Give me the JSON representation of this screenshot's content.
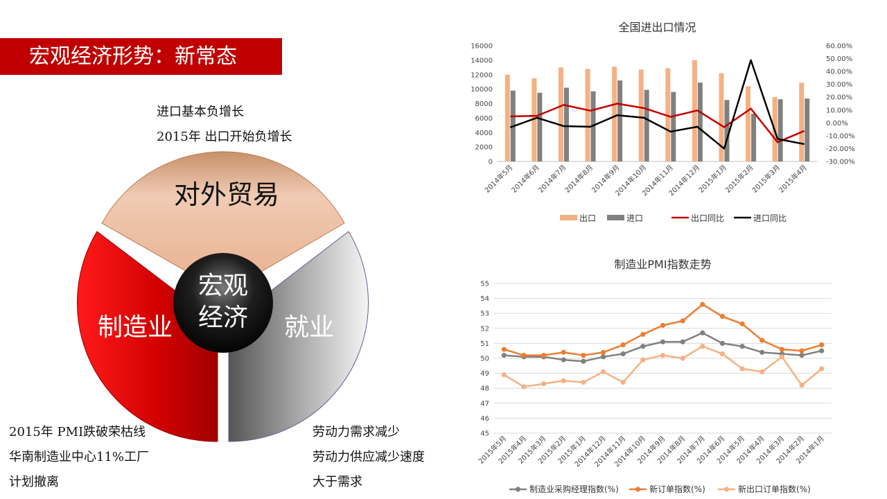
{
  "slide": {
    "title": "宏观经济形势：新常态",
    "notes_top": [
      "进口基本负增长",
      "2015年 出口开始负增长"
    ],
    "notes_bottom_left": [
      "2015年 PMI跌破荣枯线",
      "华南制造业中心11%工厂",
      "计划撤离"
    ],
    "notes_bottom_right": [
      "劳动力需求减少",
      "劳动力供应减少速度",
      "大于需求"
    ]
  },
  "diagram": {
    "segments": [
      {
        "label": "对外贸易",
        "color": "#e8a070"
      },
      {
        "label": "制造业",
        "color": "#c00000"
      },
      {
        "label": "就业",
        "color": "#7a7a7a"
      }
    ],
    "center_lines": [
      "宏观",
      "经济"
    ]
  },
  "chart_data": [
    {
      "type": "bar",
      "title": "全国进出口情况",
      "categories": [
        "2014年5月",
        "2014年6月",
        "2014年7月",
        "2014年8月",
        "2014年9月",
        "2014年10月",
        "2014年11月",
        "2014年12月",
        "2015年1月",
        "2015年2月",
        "2015年3月",
        "2015年4月"
      ],
      "series": [
        {
          "name": "出口",
          "type": "bar",
          "axis": "left",
          "color": "#f4b183",
          "values": [
            12000,
            11500,
            13000,
            12800,
            13100,
            12700,
            12900,
            14000,
            12200,
            10400,
            8900,
            10900
          ]
        },
        {
          "name": "进口",
          "type": "bar",
          "axis": "left",
          "color": "#808080",
          "values": [
            9800,
            9500,
            10200,
            9700,
            11200,
            9900,
            9600,
            10900,
            8500,
            6600,
            8600,
            8700
          ]
        },
        {
          "name": "出口同比",
          "type": "line",
          "axis": "right",
          "color": "#c00000",
          "values": [
            0.05,
            0.055,
            0.14,
            0.095,
            0.15,
            0.115,
            0.047,
            0.097,
            -0.033,
            0.111,
            -0.15,
            -0.062
          ]
        },
        {
          "name": "进口同比",
          "type": "line",
          "axis": "right",
          "color": "#000000",
          "values": [
            -0.035,
            0.04,
            -0.025,
            -0.03,
            0.06,
            0.04,
            -0.068,
            -0.03,
            -0.2,
            0.488,
            -0.125,
            -0.165
          ]
        }
      ],
      "left_ticks": [
        "16000",
        "14000",
        "12000",
        "10000",
        "8000",
        "6000",
        "4000",
        "2000",
        "0"
      ],
      "right_ticks": [
        "60.00%",
        "50.00%",
        "40.00%",
        "30.00%",
        "20.00%",
        "10.00%",
        "0.00%",
        "-10.00%",
        "-20.00%",
        "-30.00%"
      ],
      "ylim_left": [
        0,
        16000
      ],
      "ylim_right": [
        -0.3,
        0.6
      ],
      "legend_position": "bottom",
      "grid": false
    },
    {
      "type": "line",
      "title": "制造业PMI指数走势",
      "categories": [
        "2015年5月",
        "2015年4月",
        "2015年3月",
        "2015年2月",
        "2015年1月",
        "2014年12月",
        "2014年11月",
        "2014年10月",
        "2014年9月",
        "2014年8月",
        "2014年7月",
        "2014年6月",
        "2014年5月",
        "2014年4月",
        "2014年3月",
        "2014年2月",
        "2014年1月"
      ],
      "series": [
        {
          "name": "制造业采购经理指数(%)",
          "color": "#808080",
          "values": [
            50.2,
            50.1,
            50.1,
            49.9,
            49.8,
            50.1,
            50.3,
            50.8,
            51.1,
            51.1,
            51.7,
            51.0,
            50.8,
            50.4,
            50.3,
            50.2,
            50.5
          ]
        },
        {
          "name": "新订单指数(%)",
          "color": "#ed7d31",
          "values": [
            50.6,
            50.2,
            50.2,
            50.4,
            50.2,
            50.4,
            50.9,
            51.6,
            52.2,
            52.5,
            53.6,
            52.8,
            52.3,
            51.2,
            50.6,
            50.5,
            50.9
          ]
        },
        {
          "name": "新出口订单指数(%)",
          "color": "#f4b183",
          "values": [
            48.9,
            48.1,
            48.3,
            48.5,
            48.4,
            49.1,
            48.4,
            49.9,
            50.2,
            50.0,
            50.8,
            50.3,
            49.3,
            49.1,
            50.1,
            48.2,
            49.3
          ]
        }
      ],
      "y_ticks": [
        "55",
        "54",
        "53",
        "52",
        "51",
        "50",
        "49",
        "48",
        "47",
        "46",
        "45"
      ],
      "ylim": [
        45,
        55
      ],
      "legend_position": "bottom",
      "grid": true
    }
  ]
}
